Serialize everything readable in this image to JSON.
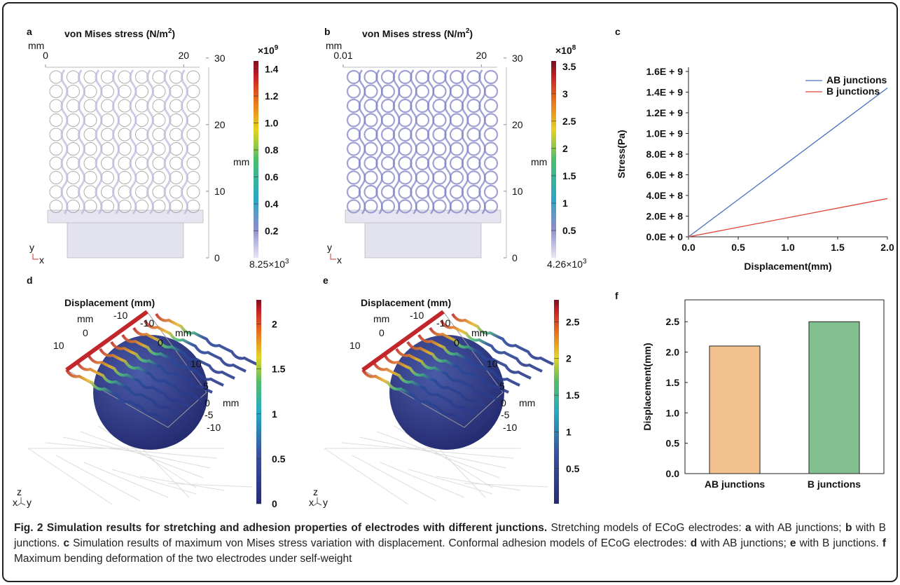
{
  "panels": {
    "a": {
      "letter": "a",
      "title": "von Mises stress (N/m",
      "title_sup": "2",
      "title_end": ")",
      "unit_top": "mm",
      "xlim": [
        0,
        22.3
      ],
      "xticks": [
        0,
        20
      ],
      "ylim": [
        0,
        30.5
      ],
      "yticks": [
        0,
        10,
        20,
        30
      ],
      "unit_right": "mm",
      "axis_y": "y",
      "axis_x": "x",
      "colorbar": {
        "base": "×10",
        "exp": "9",
        "lim": [
          0,
          1.46
        ],
        "ticks": [
          0.2,
          0.4,
          0.6,
          0.8,
          {
            "value": 1,
            "label": "1.0"
          },
          1.2,
          1.4
        ],
        "min_label": "8.25×10",
        "min_exp": "3"
      }
    },
    "b": {
      "letter": "b",
      "title": "von Mises stress (N/m",
      "title_sup": "2",
      "title_end": ")",
      "unit_top": "mm",
      "xlim": [
        0.01,
        22.3
      ],
      "xticks": [
        0.01,
        20
      ],
      "ylim": [
        0,
        30.5
      ],
      "yticks": [
        0,
        10,
        20,
        30
      ],
      "unit_right": "mm",
      "axis_y": "y",
      "axis_x": "x",
      "colorbar": {
        "base": "×10",
        "exp": "8",
        "lim": [
          0,
          3.6
        ],
        "ticks": [
          0.5,
          1,
          1.5,
          2,
          2.5,
          3,
          3.5
        ],
        "min_label": "4.26×10",
        "min_exp": "3"
      }
    },
    "d": {
      "letter": "d",
      "title": "Displacement (mm)",
      "axis_labels": [
        "mm",
        -10,
        -10,
        "mm",
        0,
        0,
        10,
        10,
        5,
        0,
        "mm",
        -5,
        -10
      ],
      "axis_z": "z",
      "axis_x": "x",
      "axis_y": "y",
      "colorbar": {
        "lim": [
          0,
          2.27
        ],
        "ticks": [
          0,
          0.5,
          1,
          1.5,
          2
        ]
      }
    },
    "e": {
      "letter": "e",
      "title": "Displacement (mm)",
      "axis_labels": [
        "mm",
        -10,
        -10,
        "mm",
        0,
        0,
        10,
        10,
        5,
        0,
        "mm",
        -5,
        -10
      ],
      "axis_z": "z",
      "axis_x": "x",
      "axis_y": "y",
      "colorbar": {
        "lim": [
          0.02,
          2.8
        ],
        "ticks": [
          0.5,
          1,
          1.5,
          2,
          2.5
        ]
      }
    }
  },
  "chart_data": [
    {
      "type": "line",
      "letter": "c",
      "x": [
        0,
        0.5,
        1,
        1.5,
        2
      ],
      "series": [
        {
          "name": "AB junctions",
          "color": "#4a72c0",
          "values": [
            0,
            360000000,
            720000000,
            1080000000,
            1440000000
          ]
        },
        {
          "name": "B junctions",
          "color": "#e0463c",
          "values": [
            0,
            92500000,
            185000000,
            277500000,
            370000000
          ]
        }
      ],
      "xlim": [
        0,
        2
      ],
      "xticks": [
        {
          "value": 0,
          "label": "0.0"
        },
        0.5,
        {
          "value": 1,
          "label": "1.0"
        },
        1.5,
        {
          "value": 2,
          "label": "2.0"
        }
      ],
      "ylim": [
        0,
        1600000000
      ],
      "yticks": [
        {
          "value": 0,
          "label": "0.0E + 0"
        },
        {
          "value": 200000000,
          "label": "2.0E + 8"
        },
        {
          "value": 400000000,
          "label": "4.0E + 8"
        },
        {
          "value": 600000000,
          "label": "6.0E + 8"
        },
        {
          "value": 800000000,
          "label": "8.0E + 8"
        },
        {
          "value": 1000000000,
          "label": "1.0E + 9"
        },
        {
          "value": 1200000000,
          "label": "1.2E + 9"
        },
        {
          "value": 1400000000,
          "label": "1.4E + 9"
        },
        {
          "value": 1600000000,
          "label": "1.6E + 9"
        }
      ],
      "xlabel": "Displacement(mm)",
      "ylabel": "Stress(Pa)",
      "legend": "upper right"
    },
    {
      "type": "bar",
      "letter": "f",
      "categories": [
        "AB junctions",
        "B junctions"
      ],
      "values": [
        2.1,
        2.5
      ],
      "colors": [
        "#f2c18d",
        "#83c08f"
      ],
      "ylim": [
        0,
        2.86
      ],
      "yticks": [
        {
          "value": 0,
          "label": "0.0"
        },
        0.5,
        {
          "value": 1,
          "label": "1.0"
        },
        1.5,
        {
          "value": 2,
          "label": "2.0"
        },
        2.5
      ],
      "ylabel": "Displacement(mm)"
    }
  ],
  "caption": {
    "title": "Fig. 2 Simulation results for stretching and adhesion properties of electrodes with different junctions.",
    "body": [
      " Stretching models of ECoG electrodes: ",
      "a",
      " with AB junctions; ",
      "b",
      " with B junctions. ",
      "c",
      " Simulation results of maximum von Mises stress variation with displacement. Conformal adhesion models of ECoG electrodes: ",
      "d",
      " with AB junctions; ",
      "e",
      " with B junctions. ",
      "f",
      " Maximum bending deformation of the two electrodes under self-weight"
    ]
  }
}
